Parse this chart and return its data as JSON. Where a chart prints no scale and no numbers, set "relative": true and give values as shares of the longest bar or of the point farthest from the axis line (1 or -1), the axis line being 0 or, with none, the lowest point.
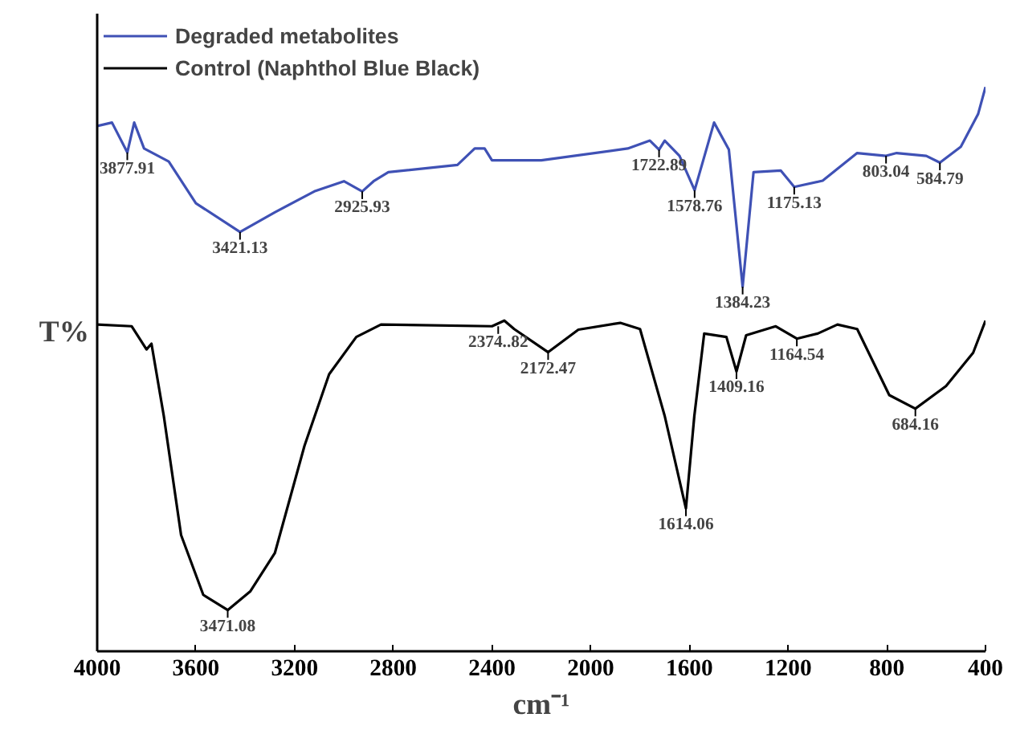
{
  "chart_data": {
    "type": "line",
    "relative": true,
    "xlabel": "cm⁻¹",
    "ylabel": "T%",
    "xlim": [
      4000,
      400
    ],
    "xticks": [
      4000,
      3600,
      3200,
      2800,
      2400,
      2000,
      1600,
      1200,
      800,
      400
    ],
    "grid": false,
    "legend": "top left",
    "marker": "none",
    "line_style": "solid",
    "series": [
      {
        "name": "Degraded metabolites",
        "color": "#3f51b5",
        "x": [
          4000,
          3940,
          3877.91,
          3850,
          3810,
          3710,
          3600,
          3421.13,
          3280,
          3120,
          3000,
          2925.93,
          2880,
          2820,
          2540,
          2470,
          2430,
          2400,
          2200,
          1850,
          1760,
          1722.89,
          1700,
          1640,
          1578.76,
          1500,
          1440,
          1384.23,
          1340,
          1230,
          1175.13,
          1060,
          920,
          803.04,
          760,
          640,
          584.79,
          500,
          430,
          400
        ],
        "values": [
          0.931,
          0.937,
          0.884,
          0.937,
          0.891,
          0.868,
          0.794,
          0.743,
          0.778,
          0.815,
          0.833,
          0.815,
          0.833,
          0.849,
          0.862,
          0.891,
          0.891,
          0.87,
          0.87,
          0.891,
          0.905,
          0.889,
          0.905,
          0.878,
          0.817,
          0.937,
          0.889,
          0.646,
          0.849,
          0.852,
          0.823,
          0.834,
          0.883,
          0.878,
          0.883,
          0.878,
          0.866,
          0.894,
          0.952,
          1.0
        ]
      },
      {
        "name": "Control (Naphthol Blue Black)",
        "color": "#000000",
        "x": [
          4000,
          3860,
          3800,
          3780,
          3730,
          3660,
          3570,
          3471.08,
          3380,
          3280,
          3160,
          3060,
          2950,
          2850,
          2400,
          2350,
          2310,
          2172.47,
          2050,
          1880,
          1800,
          1700,
          1614.06,
          1580,
          1540,
          1450,
          1409.16,
          1370,
          1250,
          1164.54,
          1080,
          1000,
          920,
          790,
          684.16,
          560,
          450,
          400
        ],
        "values": [
          0.579,
          0.576,
          0.535,
          0.545,
          0.417,
          0.206,
          0.1,
          0.073,
          0.106,
          0.174,
          0.364,
          0.491,
          0.557,
          0.579,
          0.576,
          0.586,
          0.571,
          0.53,
          0.57,
          0.582,
          0.571,
          0.417,
          0.253,
          0.417,
          0.563,
          0.557,
          0.496,
          0.56,
          0.576,
          0.554,
          0.563,
          0.579,
          0.571,
          0.454,
          0.43,
          0.47,
          0.529,
          0.586
        ]
      }
    ],
    "annotations": [
      {
        "text": "3877.91",
        "x": 3877.91,
        "y": 0.884
      },
      {
        "text": "3421.13",
        "x": 3421.13,
        "y": 0.743
      },
      {
        "text": "2925.93",
        "x": 2925.93,
        "y": 0.815
      },
      {
        "text": "1722.89",
        "x": 1722.89,
        "y": 0.889
      },
      {
        "text": "1578.76",
        "x": 1578.76,
        "y": 0.817
      },
      {
        "text": "1384.23",
        "x": 1384.23,
        "y": 0.646
      },
      {
        "text": "1175.13",
        "x": 1175.13,
        "y": 0.823
      },
      {
        "text": "803.04",
        "x": 803.04,
        "y": 0.878
      },
      {
        "text": "584.79",
        "x": 584.79,
        "y": 0.866
      },
      {
        "text": "3471.08",
        "x": 3471.08,
        "y": 0.073
      },
      {
        "text": "2374..82",
        "x": 2374.82,
        "y": 0.576
      },
      {
        "text": "2172.47",
        "x": 2172.47,
        "y": 0.53
      },
      {
        "text": "1614.06",
        "x": 1614.06,
        "y": 0.253
      },
      {
        "text": "1409.16",
        "x": 1409.16,
        "y": 0.496
      },
      {
        "text": "1164.54",
        "x": 1164.54,
        "y": 0.554
      },
      {
        "text": "684.16",
        "x": 684.16,
        "y": 0.43
      }
    ]
  }
}
